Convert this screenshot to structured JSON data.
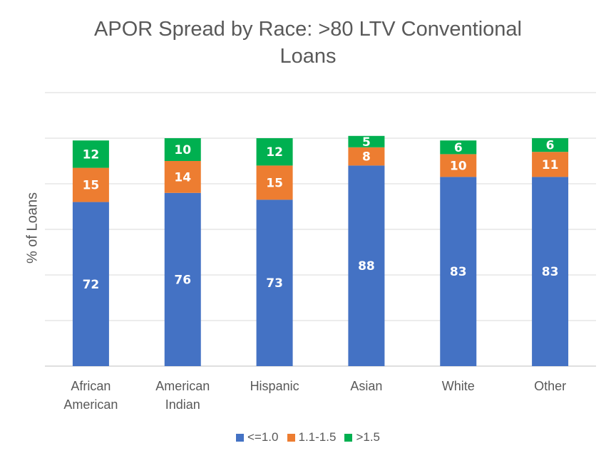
{
  "chart_data": {
    "type": "bar",
    "stacked": true,
    "title_lines": [
      "APOR Spread by Race: >80 LTV Conventional",
      "Loans"
    ],
    "ylabel": "% of Loans",
    "ylim": [
      0,
      100
    ],
    "grid": true,
    "legend_position": "bottom",
    "categories": [
      [
        "African",
        "American"
      ],
      [
        "American",
        "Indian"
      ],
      [
        "Hispanic"
      ],
      [
        "Asian"
      ],
      [
        "White"
      ],
      [
        "Other"
      ]
    ],
    "series": [
      {
        "name": "<=1.0",
        "color": "#4472C4",
        "values": [
          72,
          76,
          73,
          88,
          83,
          83
        ]
      },
      {
        "name": "1.1-1.5",
        "color": "#ED7D31",
        "values": [
          15,
          14,
          15,
          8,
          10,
          11
        ]
      },
      {
        "name": ">1.5",
        "color": "#00B050",
        "values": [
          12,
          10,
          12,
          5,
          6,
          6
        ]
      }
    ]
  }
}
